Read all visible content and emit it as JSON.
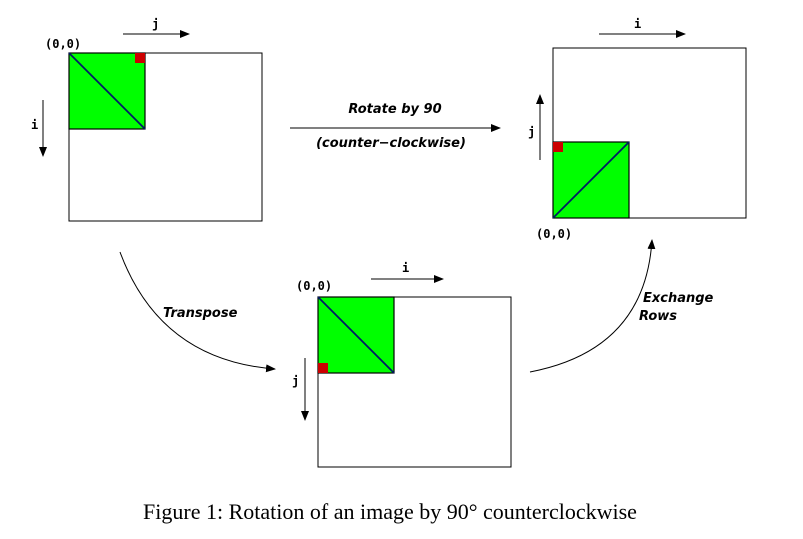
{
  "figure": {
    "caption": "Figure 1: Rotation of an image by 90° counterclockwise"
  },
  "panels": {
    "original": {
      "origin_label": "(0,0)",
      "horizontal_axis": "j",
      "vertical_axis": "i"
    },
    "rotated": {
      "origin_label": "(0,0)",
      "horizontal_axis": "i",
      "vertical_axis": "j"
    },
    "transposed": {
      "origin_label": "(0,0)",
      "horizontal_axis": "i",
      "vertical_axis": "j"
    }
  },
  "arrows": {
    "rotate": {
      "line1": "Rotate by 90",
      "line2": "(counter−clockwise)"
    },
    "transpose": {
      "label": "Transpose"
    },
    "exchange": {
      "line1": "Exchange",
      "line2": "Rows"
    }
  },
  "colors": {
    "square_fill": "#00ff00",
    "marker_fill": "#cc0000",
    "stroke": "#000000",
    "diagonal": "#001a66"
  }
}
